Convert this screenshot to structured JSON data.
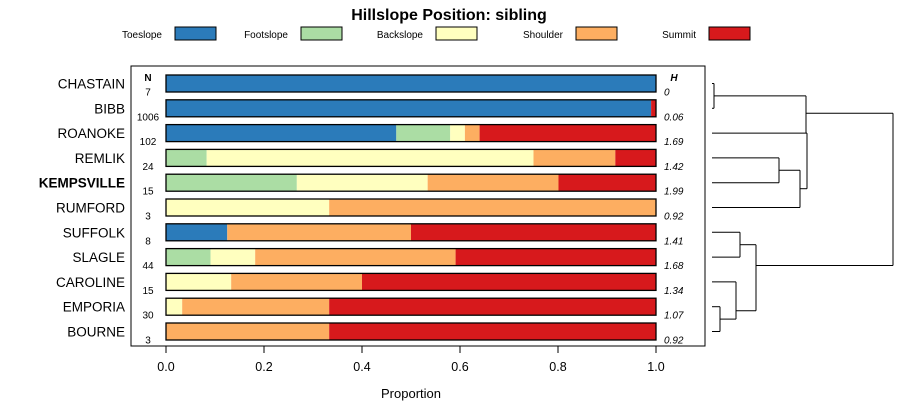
{
  "chart_data": {
    "type": "bar",
    "stacked": true,
    "orientation": "horizontal",
    "title": "Hillslope Position: sibling",
    "xlabel": "Proportion",
    "xlim": [
      0,
      1
    ],
    "xticks": [
      "0.0",
      "0.2",
      "0.4",
      "0.6",
      "0.8",
      "1.0"
    ],
    "n_header": "N",
    "h_header": "H",
    "legend_position": "top",
    "series": [
      {
        "name": "Toeslope",
        "color": "#2b7bba"
      },
      {
        "name": "Footslope",
        "color": "#abdda4"
      },
      {
        "name": "Backslope",
        "color": "#ffffbf"
      },
      {
        "name": "Shoulder",
        "color": "#fdae61"
      },
      {
        "name": "Summit",
        "color": "#d7191c"
      }
    ],
    "categories": [
      {
        "name": "CHASTAIN",
        "n": "7",
        "h": "0",
        "bold": false,
        "values": [
          1.0,
          0,
          0,
          0,
          0
        ]
      },
      {
        "name": "BIBB",
        "n": "1006",
        "h": "0.06",
        "bold": false,
        "values": [
          0.99,
          0,
          0,
          0,
          0.01
        ]
      },
      {
        "name": "ROANOKE",
        "n": "102",
        "h": "1.69",
        "bold": false,
        "values": [
          0.47,
          0.11,
          0.03,
          0.03,
          0.36
        ]
      },
      {
        "name": "REMLIK",
        "n": "24",
        "h": "1.42",
        "bold": false,
        "values": [
          0,
          0.083,
          0.667,
          0.167,
          0.083
        ]
      },
      {
        "name": "KEMPSVILLE",
        "n": "15",
        "h": "1.99",
        "bold": true,
        "values": [
          0,
          0.267,
          0.267,
          0.267,
          0.2
        ]
      },
      {
        "name": "RUMFORD",
        "n": "3",
        "h": "0.92",
        "bold": false,
        "values": [
          0,
          0,
          0.333,
          0.667,
          0
        ]
      },
      {
        "name": "SUFFOLK",
        "n": "8",
        "h": "1.41",
        "bold": false,
        "values": [
          0.125,
          0,
          0,
          0.375,
          0.5
        ]
      },
      {
        "name": "SLAGLE",
        "n": "44",
        "h": "1.68",
        "bold": false,
        "values": [
          0,
          0.091,
          0.091,
          0.409,
          0.409
        ]
      },
      {
        "name": "CAROLINE",
        "n": "15",
        "h": "1.34",
        "bold": false,
        "values": [
          0,
          0,
          0.133,
          0.267,
          0.6
        ]
      },
      {
        "name": "EMPORIA",
        "n": "30",
        "h": "1.07",
        "bold": false,
        "values": [
          0,
          0,
          0.033,
          0.3,
          0.667
        ]
      },
      {
        "name": "BOURNE",
        "n": "3",
        "h": "0.92",
        "bold": false,
        "values": [
          0,
          0,
          0,
          0.333,
          0.667
        ]
      }
    ]
  }
}
